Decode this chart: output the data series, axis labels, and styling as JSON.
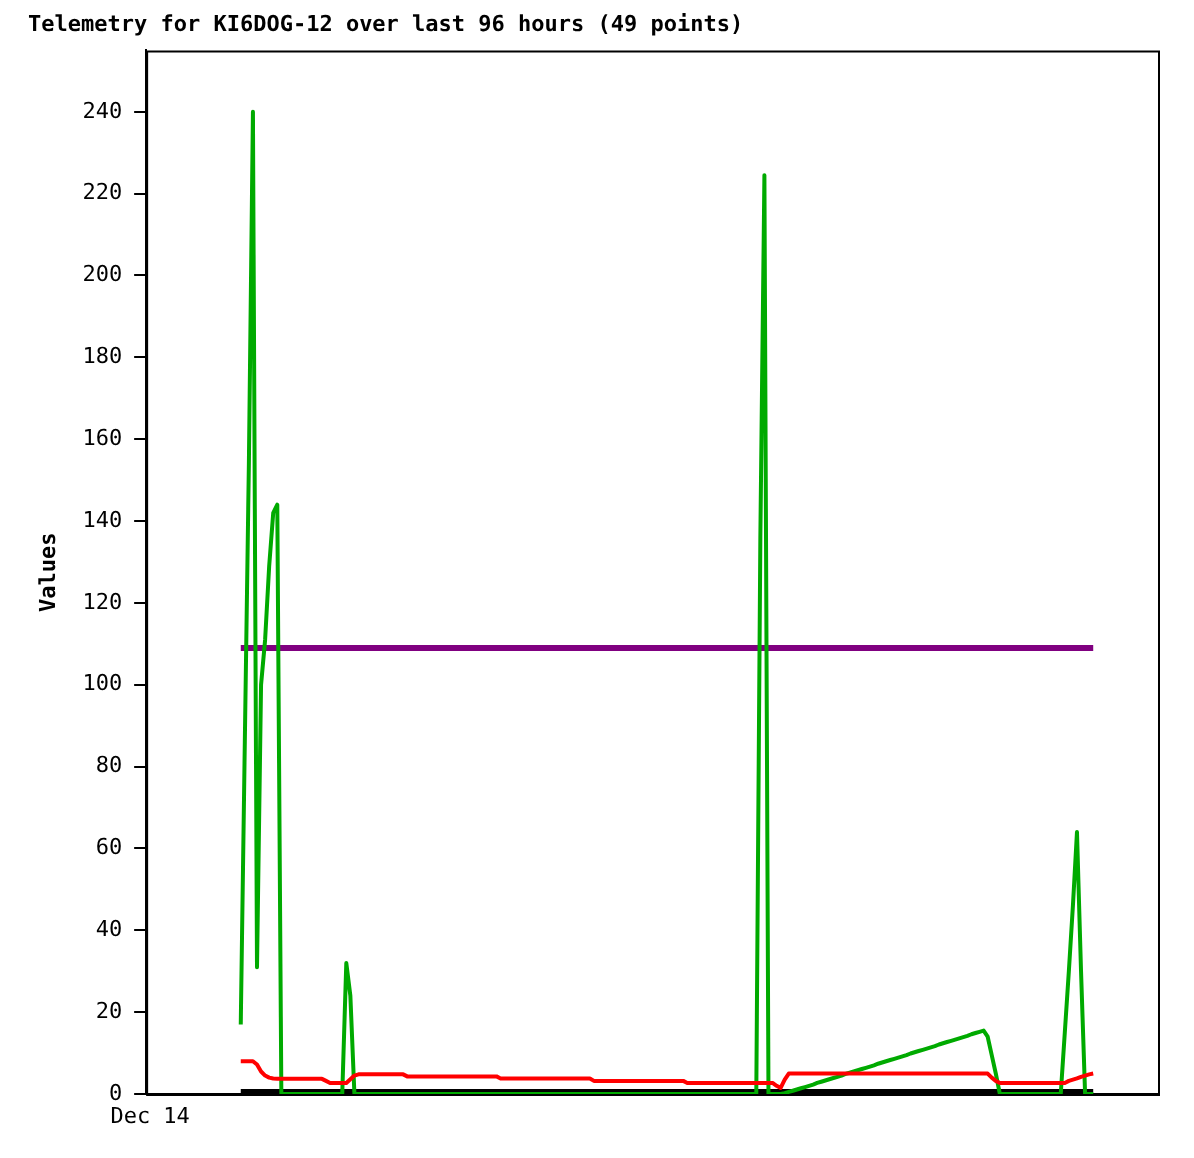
{
  "chart_data": {
    "type": "line",
    "title": "Telemetry for KI6DOG-12 over last 96 hours (49 points)",
    "ylabel": "Values",
    "annotations": [
      "Dec 14"
    ],
    "categories": [
      null,
      null,
      null,
      null,
      null,
      null,
      null,
      null,
      null,
      null,
      null,
      null,
      null,
      null,
      null,
      null,
      null,
      null,
      null,
      null,
      null,
      null,
      null,
      null,
      null,
      null,
      null,
      null,
      null,
      null,
      null,
      null,
      null,
      null,
      null,
      null,
      null,
      null,
      null,
      null,
      null,
      null,
      null,
      null,
      null,
      null,
      null,
      null,
      null,
      null,
      null,
      null,
      null,
      null,
      null,
      null,
      null,
      null,
      null,
      null,
      null,
      null,
      null,
      null,
      null,
      null,
      null,
      null,
      null,
      null,
      null,
      null,
      null,
      null,
      null,
      null,
      null,
      null,
      null,
      null,
      null,
      null,
      null,
      null,
      null,
      null,
      null,
      null,
      null,
      null,
      null,
      null,
      null,
      null,
      null,
      null,
      null,
      null,
      null,
      null,
      null,
      null,
      null,
      null,
      null,
      null,
      null,
      null,
      null,
      null,
      null,
      null,
      null,
      null,
      null,
      null,
      null,
      null,
      null,
      null,
      null,
      null,
      null,
      null,
      null,
      null,
      null,
      null,
      null,
      null,
      null,
      null,
      null,
      null,
      null,
      null,
      null,
      null,
      null,
      null,
      null,
      null,
      null,
      null,
      null,
      null,
      null,
      null,
      null,
      null,
      null,
      null,
      null,
      null,
      null,
      null,
      null,
      null,
      null,
      null,
      null,
      null,
      null,
      null,
      null,
      null,
      null,
      null,
      null,
      null,
      null,
      null,
      null,
      null,
      null,
      null,
      null,
      null,
      null,
      null,
      null,
      null,
      null,
      null,
      null,
      null,
      null,
      null,
      null,
      null,
      null,
      null,
      null,
      null,
      null,
      null,
      null,
      null,
      null,
      null,
      null,
      null,
      null,
      null,
      null,
      null,
      null,
      null,
      null,
      null,
      null
    ],
    "ylim": [
      0,
      255
    ],
    "yticks": [
      0,
      20,
      40,
      60,
      80,
      100,
      120,
      140,
      160,
      180,
      200,
      220,
      240
    ],
    "tick_labels": "y",
    "grid": false,
    "legend": false,
    "marker": "none",
    "line_style": "solid",
    "ref_lines": [
      {
        "axis": "y",
        "value": 0,
        "color": "#000000"
      },
      {
        "axis": "y",
        "value": 109,
        "color": "#800080"
      }
    ],
    "series": [
      {
        "color": "#ff0000",
        "values": [
          8,
          8,
          8,
          8,
          7.2,
          5.5,
          4.5,
          4,
          3.8,
          3.7,
          3.7,
          3.7,
          3.7,
          3.7,
          3.7,
          3.7,
          3.7,
          3.7,
          3.7,
          3.7,
          3.7,
          3.2,
          2.7,
          2.7,
          2.7,
          2.7,
          2.7,
          3.6,
          4.5,
          4.8,
          4.8,
          4.8,
          4.8,
          4.8,
          4.8,
          4.8,
          4.8,
          4.8,
          4.8,
          4.8,
          4.8,
          4.3,
          4.3,
          4.3,
          4.3,
          4.3,
          4.3,
          4.3,
          4.3,
          4.3,
          4.3,
          4.3,
          4.3,
          4.3,
          4.3,
          4.3,
          4.3,
          4.3,
          4.3,
          4.3,
          4.3,
          4.3,
          4.3,
          4.3,
          3.8,
          3.8,
          3.8,
          3.8,
          3.8,
          3.8,
          3.8,
          3.8,
          3.8,
          3.8,
          3.8,
          3.8,
          3.8,
          3.8,
          3.8,
          3.8,
          3.8,
          3.8,
          3.8,
          3.8,
          3.8,
          3.8,
          3.8,
          3.2,
          3.2,
          3.2,
          3.2,
          3.2,
          3.2,
          3.2,
          3.2,
          3.2,
          3.2,
          3.2,
          3.2,
          3.2,
          3.2,
          3.2,
          3.2,
          3.2,
          3.2,
          3.2,
          3.2,
          3.2,
          3.2,
          3.2,
          2.7,
          2.7,
          2.7,
          2.7,
          2.7,
          2.7,
          2.7,
          2.7,
          2.7,
          2.7,
          2.7,
          2.7,
          2.7,
          2.7,
          2.7,
          2.7,
          2.7,
          2.7,
          2.7,
          2.7,
          2.7,
          2.7,
          2,
          1.5,
          3.5,
          5,
          5,
          5,
          5,
          5,
          5,
          5,
          5,
          5,
          5,
          5,
          5,
          5,
          5,
          5,
          5,
          5,
          5,
          5,
          5,
          5,
          5,
          5,
          5,
          5,
          5,
          5,
          5,
          5,
          5,
          5,
          5,
          5,
          5,
          5,
          5,
          5,
          5,
          5,
          5,
          5,
          5,
          5,
          5,
          5,
          5,
          5,
          5,
          5,
          5,
          4,
          3.2,
          2.7,
          2.7,
          2.7,
          2.7,
          2.7,
          2.7,
          2.7,
          2.7,
          2.7,
          2.7,
          2.7,
          2.7,
          2.7,
          2.7,
          2.7,
          2.7,
          2.7,
          3.2,
          3.5,
          3.8,
          4.2,
          4.5,
          4.8,
          5
        ]
      },
      {
        "color": "#00aa00",
        "values": [
          17,
          86,
          154,
          240,
          31,
          100,
          111,
          129,
          142,
          144,
          0,
          0,
          0,
          0,
          0,
          0,
          0,
          0,
          0,
          0,
          0,
          0,
          0,
          0,
          0,
          0,
          32,
          24,
          0,
          0,
          0,
          0,
          0,
          0,
          0,
          0,
          0,
          0,
          0,
          0,
          0,
          0,
          0,
          0,
          0,
          0,
          0,
          0,
          0,
          0,
          0,
          0,
          0,
          0,
          0,
          0,
          0,
          0,
          0,
          0,
          0,
          0,
          0,
          0,
          0,
          0,
          0,
          0,
          0,
          0,
          0,
          0,
          0,
          0,
          0,
          0,
          0,
          0,
          0,
          0,
          0,
          0,
          0,
          0,
          0,
          0,
          0,
          0,
          0,
          0,
          0,
          0,
          0,
          0,
          0,
          0,
          0,
          0,
          0,
          0,
          0,
          0,
          0,
          0,
          0,
          0,
          0,
          0,
          0,
          0,
          0,
          0,
          0,
          0,
          0,
          0,
          0,
          0,
          0,
          0,
          0,
          0,
          0,
          0,
          0,
          0,
          0,
          0,
          136,
          224.5,
          0,
          0,
          0,
          0,
          0.2,
          0.5,
          0.8,
          1.1,
          1.4,
          1.7,
          2,
          2.3,
          2.7,
          3,
          3.3,
          3.6,
          3.9,
          4.2,
          4.5,
          4.9,
          5.2,
          5.5,
          5.8,
          6.1,
          6.4,
          6.7,
          7,
          7.4,
          7.7,
          8,
          8.3,
          8.6,
          8.9,
          9.2,
          9.5,
          9.9,
          10.2,
          10.5,
          10.8,
          11.1,
          11.4,
          11.7,
          12.1,
          12.4,
          12.7,
          13,
          13.3,
          13.6,
          13.9,
          14.2,
          14.6,
          14.9,
          15.2,
          15.5,
          14,
          9.5,
          5,
          0,
          0,
          0,
          0,
          0,
          0,
          0,
          0,
          0,
          0,
          0,
          0,
          0,
          0,
          0,
          0,
          15,
          30,
          46,
          64,
          30,
          0,
          0,
          0
        ]
      }
    ]
  }
}
